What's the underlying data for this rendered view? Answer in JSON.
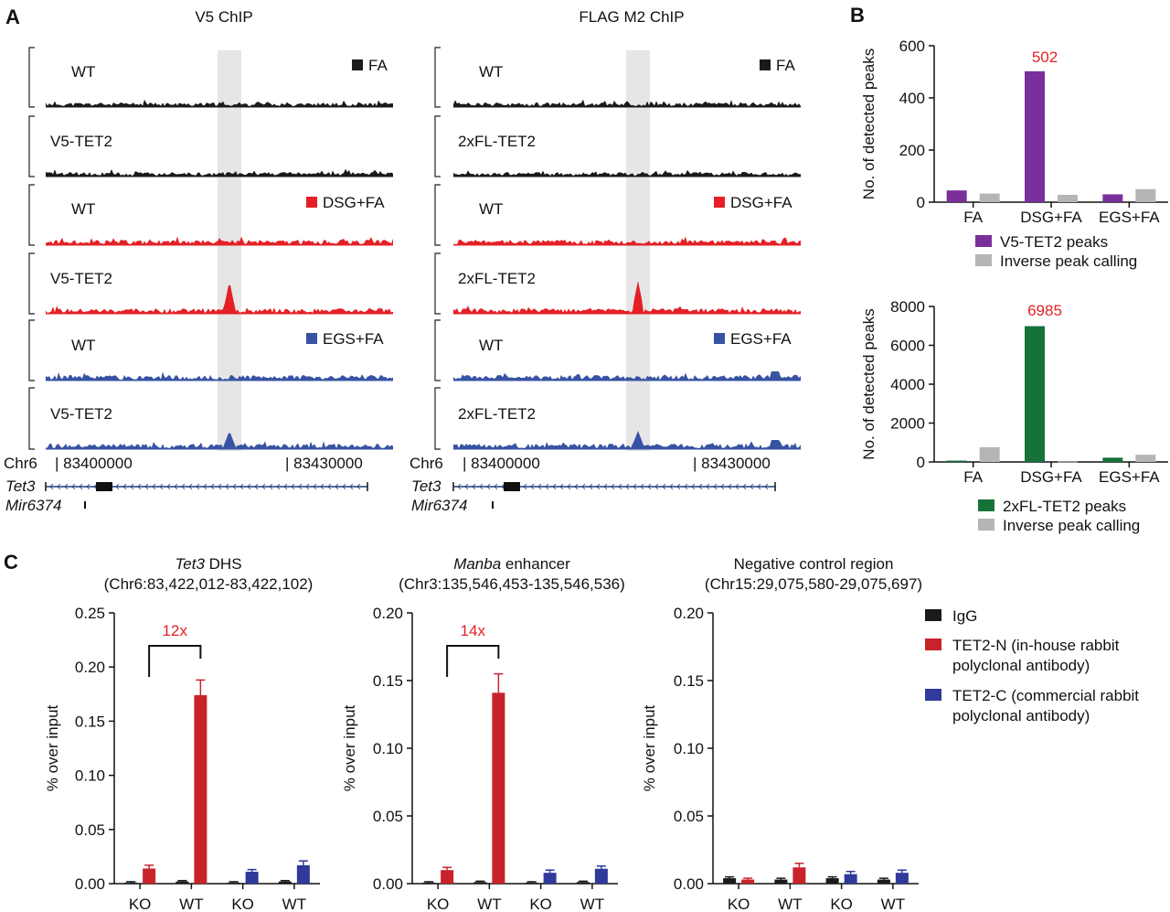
{
  "colors": {
    "black": "#1a1a1a",
    "red": "#e42026",
    "blue": "#3753a3",
    "purple": "#7b2f9a",
    "gray": "#b5b5b5",
    "green": "#17723a",
    "darkred": "#c8232b",
    "navy": "#2f3a9a",
    "highlight": "#e6e6e6",
    "annot": "#e42026"
  },
  "panelA": {
    "label": "A",
    "col_titles": [
      "V5 ChIP",
      "FLAG M2 ChIP"
    ],
    "tracks_left": [
      {
        "sample": "WT",
        "legend": "FA",
        "color": "black"
      },
      {
        "sample": "V5-TET2",
        "legend": "",
        "color": "black"
      },
      {
        "sample": "WT",
        "legend": "DSG+FA",
        "color": "red"
      },
      {
        "sample": "V5-TET2",
        "legend": "",
        "color": "red"
      },
      {
        "sample": "WT",
        "legend": "EGS+FA",
        "color": "blue"
      },
      {
        "sample": "V5-TET2",
        "legend": "",
        "color": "blue"
      }
    ],
    "tracks_right": [
      {
        "sample": "WT",
        "legend": "FA",
        "color": "black"
      },
      {
        "sample": "2xFL-TET2",
        "legend": "",
        "color": "black"
      },
      {
        "sample": "WT",
        "legend": "DSG+FA",
        "color": "red"
      },
      {
        "sample": "2xFL-TET2",
        "legend": "",
        "color": "red"
      },
      {
        "sample": "WT",
        "legend": "EGS+FA",
        "color": "blue"
      },
      {
        "sample": "2xFL-TET2",
        "legend": "",
        "color": "blue"
      }
    ],
    "chrom": "Chr6",
    "coord_start": "| 83400000",
    "coord_end": "| 83430000",
    "genes": [
      "Tet3",
      "Mir6374"
    ]
  },
  "chart_data": [
    {
      "id": "B-top",
      "panel": "B",
      "type": "bar",
      "categories": [
        "FA",
        "DSG+FA",
        "EGS+FA"
      ],
      "series": [
        {
          "name": "V5-TET2 peaks",
          "color": "purple",
          "values": [
            45,
            502,
            30
          ]
        },
        {
          "name": "Inverse peak calling",
          "color": "gray",
          "values": [
            33,
            28,
            50
          ]
        }
      ],
      "ylabel": "No. of detected peaks",
      "ylim": [
        0,
        600
      ],
      "yticks": [
        "0",
        "200",
        "400",
        "600"
      ],
      "annotations": [
        "502"
      ]
    },
    {
      "id": "B-bottom",
      "type": "bar",
      "categories": [
        "FA",
        "DSG+FA",
        "EGS+FA"
      ],
      "series": [
        {
          "name": "2xFL-TET2 peaks",
          "color": "green",
          "values": [
            70,
            6985,
            220
          ]
        },
        {
          "name": "Inverse peak calling",
          "color": "gray",
          "values": [
            760,
            20,
            370
          ]
        }
      ],
      "ylabel": "No. of detected peaks",
      "ylim": [
        0,
        8000
      ],
      "yticks": [
        "0",
        "2000",
        "4000",
        "6000",
        "8000"
      ],
      "annotations": [
        "6985"
      ]
    },
    {
      "id": "C1",
      "panel": "C",
      "type": "bar",
      "title_italic": "Tet3",
      "title_rest": " DHS",
      "subtitle": "(Chr6:83,422,012-83,422,102)",
      "ylabel": "% over input",
      "ylim": [
        0,
        0.25
      ],
      "yticks": [
        "0.00",
        "0.05",
        "0.10",
        "0.15",
        "0.20",
        "0.25"
      ],
      "categories": [
        "KO",
        "WT",
        "KO",
        "WT"
      ],
      "series": [
        {
          "name": "IgG",
          "color": "black",
          "values": [
            0.001,
            0.002,
            0.001,
            0.002
          ],
          "err": [
            0.0008,
            0.0008,
            0.0008,
            0.0008
          ]
        },
        {
          "name": "TET2-N (in-house rabbit polyclonal antibody)",
          "color": "darkred",
          "values": [
            0.014,
            0.174,
            null,
            null
          ],
          "err": [
            0.003,
            0.014,
            0,
            0
          ]
        },
        {
          "name": "TET2-C (commercial rabbit polyclonal antibody)",
          "color": "navy",
          "values": [
            null,
            null,
            0.011,
            0.017
          ],
          "err": [
            0,
            0,
            0.002,
            0.004
          ]
        }
      ],
      "fold_label": "12x"
    },
    {
      "id": "C2",
      "type": "bar",
      "title_italic": "Manba",
      "title_rest": " enhancer",
      "subtitle": "(Chr3:135,546,453-135,546,536)",
      "ylabel": "% over input",
      "ylim": [
        0,
        0.2
      ],
      "yticks": [
        "0.00",
        "0.05",
        "0.10",
        "0.15",
        "0.20"
      ],
      "categories": [
        "KO",
        "WT",
        "KO",
        "WT"
      ],
      "series": [
        {
          "name": "IgG",
          "color": "black",
          "values": [
            0.0008,
            0.0012,
            0.0008,
            0.0012
          ],
          "err": [
            0.0006,
            0.0006,
            0.0006,
            0.0006
          ]
        },
        {
          "name": "TET2-N (in-house rabbit polyclonal antibody)",
          "color": "darkred",
          "values": [
            0.01,
            0.141,
            null,
            null
          ],
          "err": [
            0.002,
            0.014,
            0,
            0
          ]
        },
        {
          "name": "TET2-C (commercial rabbit polyclonal antibody)",
          "color": "navy",
          "values": [
            null,
            null,
            0.008,
            0.011
          ],
          "err": [
            0,
            0,
            0.002,
            0.002
          ]
        }
      ],
      "fold_label": "14x"
    },
    {
      "id": "C3",
      "type": "bar",
      "title_italic": "",
      "title_rest": "Negative control region",
      "subtitle": "(Chr15:29,075,580-29,075,697)",
      "ylabel": "% over input",
      "ylim": [
        0,
        0.2
      ],
      "yticks": [
        "0.00",
        "0.05",
        "0.10",
        "0.15",
        "0.20"
      ],
      "categories": [
        "KO",
        "WT",
        "KO",
        "WT"
      ],
      "series": [
        {
          "name": "IgG",
          "color": "black",
          "values": [
            0.004,
            0.003,
            0.004,
            0.003
          ],
          "err": [
            0.001,
            0.001,
            0.001,
            0.001
          ]
        },
        {
          "name": "TET2-N (in-house rabbit polyclonal antibody)",
          "color": "darkred",
          "values": [
            0.003,
            0.012,
            null,
            null
          ],
          "err": [
            0.001,
            0.003,
            0,
            0
          ]
        },
        {
          "name": "TET2-C (commercial rabbit polyclonal antibody)",
          "color": "navy",
          "values": [
            null,
            null,
            0.007,
            0.008
          ],
          "err": [
            0,
            0,
            0.002,
            0.002
          ]
        }
      ],
      "fold_label": ""
    }
  ],
  "legendC": [
    {
      "color": "black",
      "lines": [
        "IgG"
      ]
    },
    {
      "color": "darkred",
      "lines": [
        "TET2-N (in-house rabbit",
        "polyclonal antibody)"
      ]
    },
    {
      "color": "navy",
      "lines": [
        "TET2-C (commercial rabbit",
        "polyclonal antibody)"
      ]
    }
  ]
}
